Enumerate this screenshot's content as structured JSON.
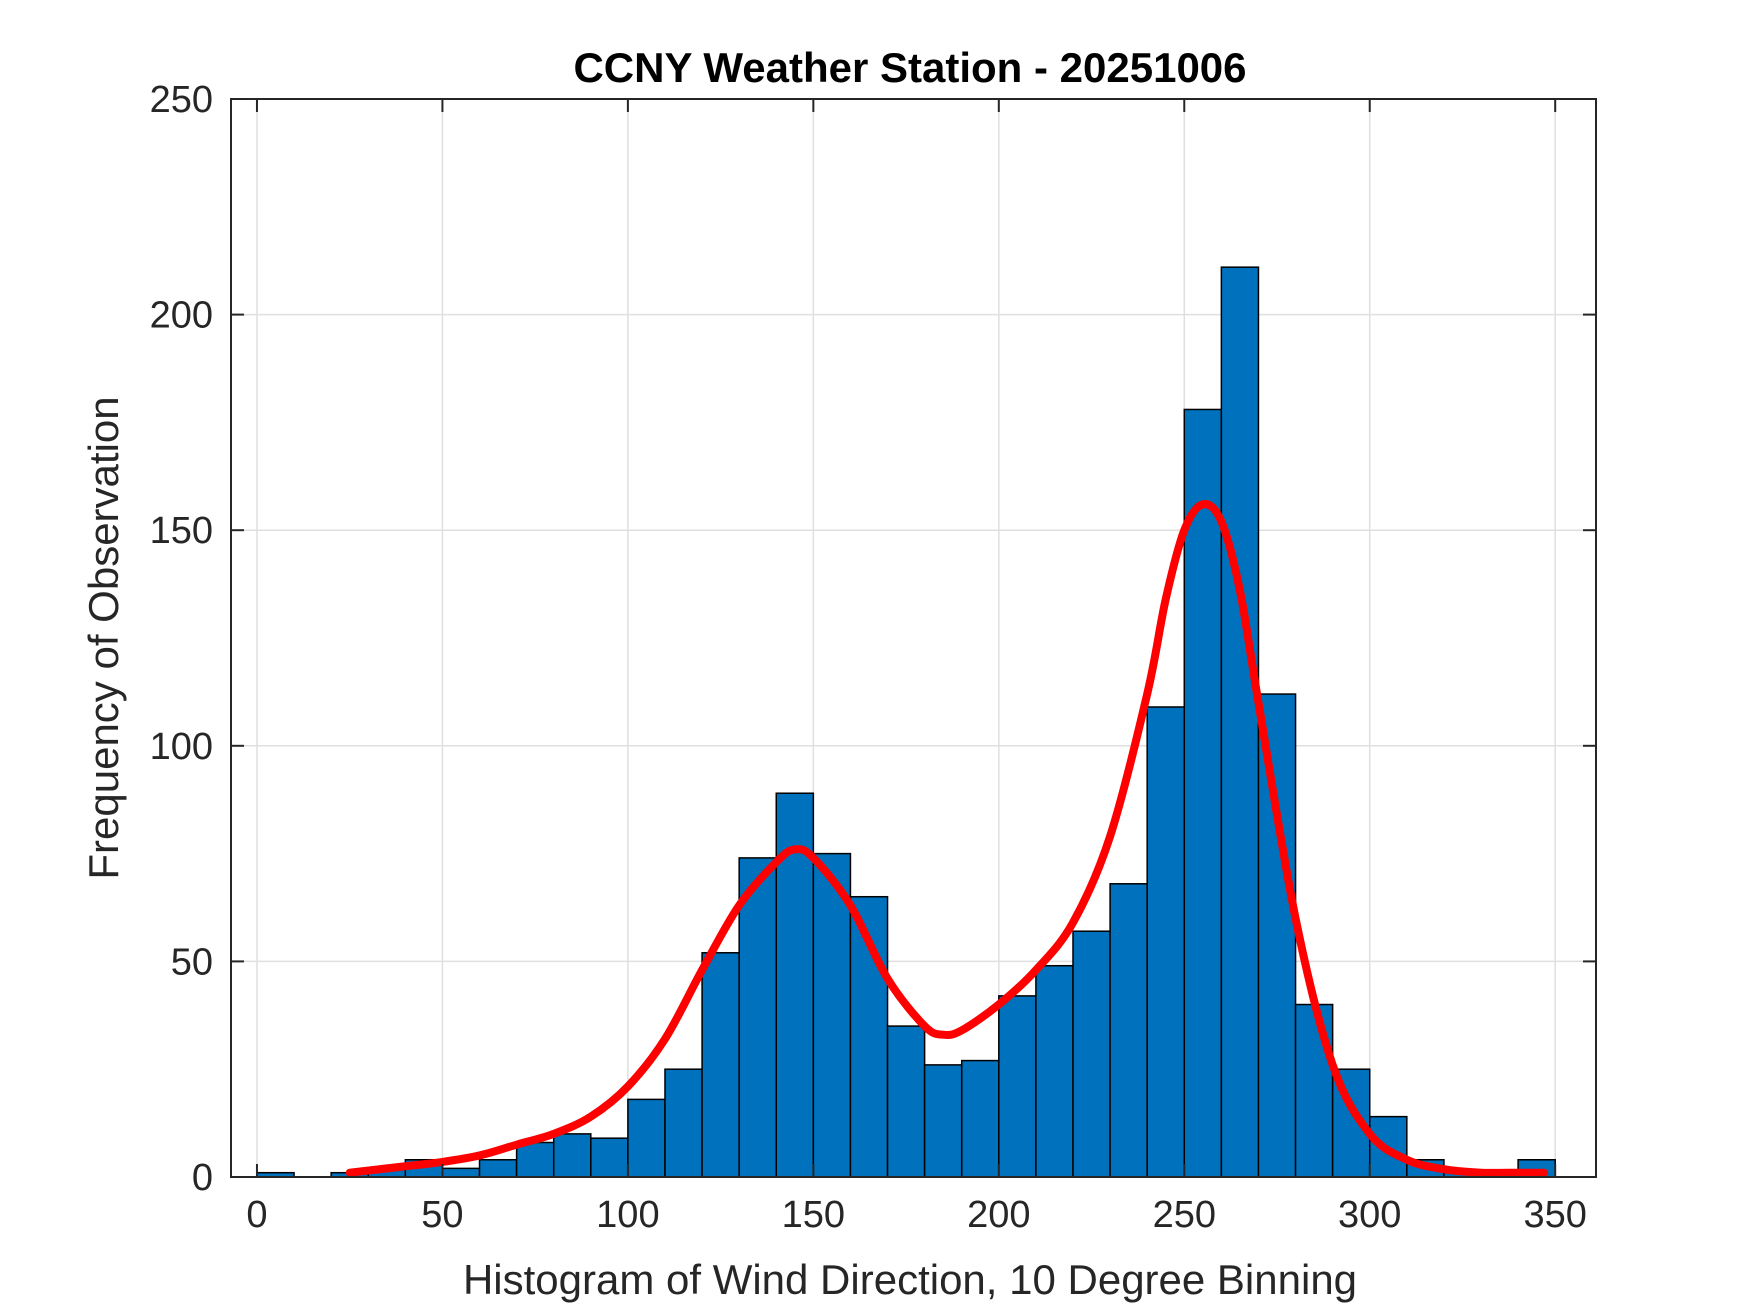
{
  "chart_data": {
    "type": "bar",
    "title": "CCNY Weather Station - 20251006",
    "xlabel": "Histogram of Wind Direction, 10 Degree Binning",
    "ylabel": "Frequency of Observation",
    "xlim": [
      -7,
      361
    ],
    "ylim": [
      0,
      250
    ],
    "xticks": [
      0,
      50,
      100,
      150,
      200,
      250,
      300,
      350
    ],
    "yticks": [
      0,
      50,
      100,
      150,
      200,
      250
    ],
    "grid": true,
    "bin_width": 10,
    "bins": [
      {
        "x0": 0,
        "value": 1
      },
      {
        "x0": 20,
        "value": 1
      },
      {
        "x0": 30,
        "value": 2
      },
      {
        "x0": 40,
        "value": 4
      },
      {
        "x0": 50,
        "value": 2
      },
      {
        "x0": 60,
        "value": 4
      },
      {
        "x0": 70,
        "value": 8
      },
      {
        "x0": 80,
        "value": 10
      },
      {
        "x0": 90,
        "value": 9
      },
      {
        "x0": 100,
        "value": 18
      },
      {
        "x0": 110,
        "value": 25
      },
      {
        "x0": 120,
        "value": 52
      },
      {
        "x0": 130,
        "value": 74
      },
      {
        "x0": 140,
        "value": 89
      },
      {
        "x0": 150,
        "value": 75
      },
      {
        "x0": 160,
        "value": 65
      },
      {
        "x0": 170,
        "value": 35
      },
      {
        "x0": 180,
        "value": 26
      },
      {
        "x0": 190,
        "value": 27
      },
      {
        "x0": 200,
        "value": 42
      },
      {
        "x0": 210,
        "value": 49
      },
      {
        "x0": 220,
        "value": 57
      },
      {
        "x0": 230,
        "value": 68
      },
      {
        "x0": 240,
        "value": 109
      },
      {
        "x0": 250,
        "value": 178
      },
      {
        "x0": 260,
        "value": 211
      },
      {
        "x0": 270,
        "value": 112
      },
      {
        "x0": 280,
        "value": 40
      },
      {
        "x0": 290,
        "value": 25
      },
      {
        "x0": 300,
        "value": 14
      },
      {
        "x0": 310,
        "value": 4
      },
      {
        "x0": 320,
        "value": 1
      },
      {
        "x0": 340,
        "value": 4
      }
    ],
    "fit_curve": {
      "x": [
        25,
        40,
        50,
        60,
        70,
        80,
        90,
        100,
        110,
        120,
        130,
        140,
        145,
        150,
        160,
        170,
        180,
        185,
        190,
        200,
        210,
        220,
        230,
        240,
        245,
        250,
        255,
        260,
        265,
        270,
        280,
        290,
        300,
        310,
        320,
        330,
        340,
        347
      ],
      "y": [
        1,
        2.5,
        3.5,
        5,
        7.5,
        10,
        14,
        21,
        32,
        48,
        63,
        73,
        76,
        74,
        63,
        46,
        35,
        33,
        34,
        40,
        48,
        59,
        79,
        112,
        134,
        150,
        156,
        152,
        136,
        110,
        60,
        26,
        10,
        4,
        1.8,
        1,
        1,
        1
      ],
      "color": "#ff0000"
    },
    "bar_color": "#0072bd",
    "bar_edge_color": "#000000"
  }
}
